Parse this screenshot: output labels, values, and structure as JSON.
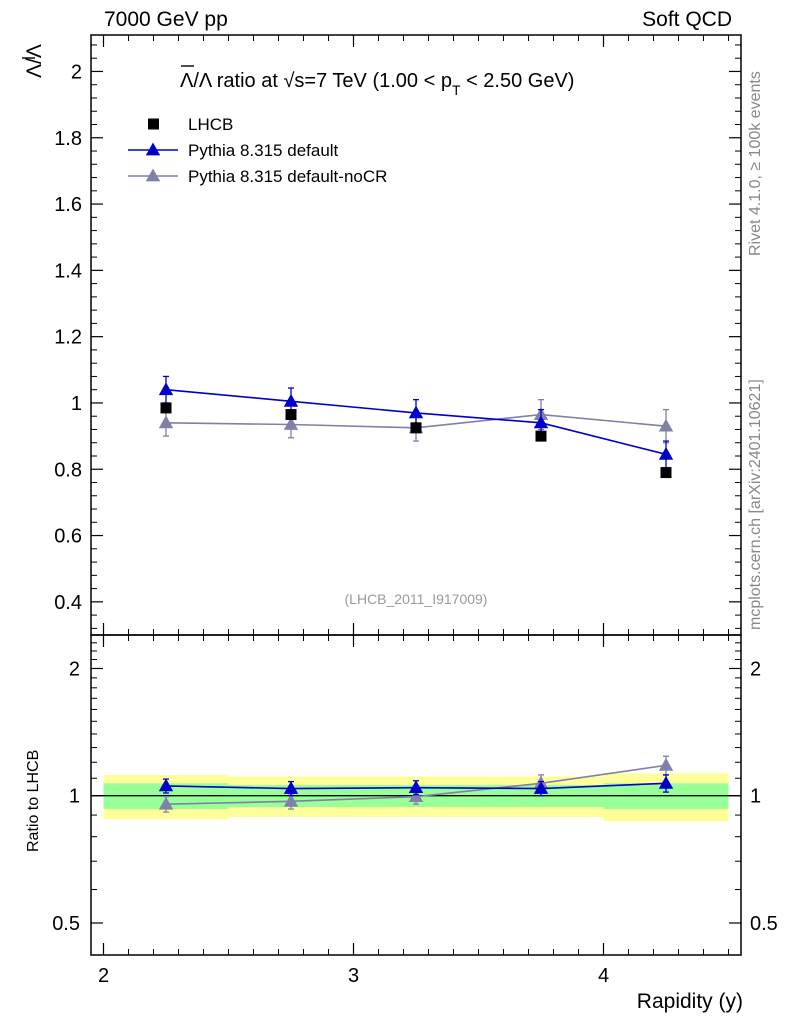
{
  "header": {
    "energy": "7000 GeV pp",
    "process": "Soft QCD"
  },
  "side_labels": {
    "rivet": "Rivet 4.1.0, ≥ 100k events",
    "mcplots": "mcplots.cern.ch [arXiv:2401.10621]"
  },
  "colors": {
    "lhcb": "#000000",
    "default": "#0000cc",
    "nocr": "#8080a8",
    "band_yellow": "#ffff99",
    "band_green": "#99ff99"
  },
  "chart_data": {
    "type": "line",
    "title_lead": "Λ/Λ ratio at ",
    "title_sqrt": "√s",
    "title_mid": "=7 TeV (1.00 < p",
    "title_sub": "T",
    "title_tail": " < 2.50 GeV)",
    "ylabel": "Λ/Λ",
    "ratio_ylabel": "Ratio to LHCB",
    "xlabel": "Rapidity (y)",
    "watermark": "(LHCB_2011_I917009)",
    "x_range": [
      1.95,
      4.55
    ],
    "ylim": [
      0.3,
      2.11
    ],
    "ratio_ylim": [
      0.42,
      2.4
    ],
    "x_ticks": [
      2,
      3,
      4
    ],
    "x_tick_labels": [
      "2",
      "3",
      "4"
    ],
    "y_ticks": [
      0.4,
      0.6,
      0.8,
      1,
      1.2,
      1.4,
      1.6,
      1.8,
      2
    ],
    "y_tick_labels": [
      "0.4",
      "0.6",
      "0.8",
      "1",
      "1.2",
      "1.4",
      "1.6",
      "1.8",
      "2"
    ],
    "ratio_ticks": [
      0.5,
      1,
      2
    ],
    "ratio_tick_labels": [
      "0.5",
      "1",
      "2"
    ],
    "x": [
      2.25,
      2.75,
      3.25,
      3.75,
      4.25
    ],
    "bin_edges": [
      2.0,
      2.5,
      3.0,
      3.5,
      4.0,
      4.5
    ],
    "series": [
      {
        "name": "LHCB",
        "key": "lhcb",
        "values": [
          0.985,
          0.965,
          0.925,
          0.9,
          0.79
        ],
        "errors": [
          0.012,
          0.012,
          0.012,
          0.012,
          0.012
        ]
      },
      {
        "name": "Pythia 8.315 default",
        "key": "default",
        "values": [
          1.04,
          1.005,
          0.97,
          0.94,
          0.845
        ],
        "errors": [
          0.04,
          0.04,
          0.04,
          0.04,
          0.04
        ]
      },
      {
        "name": "Pythia 8.315 default-noCR",
        "key": "nocr",
        "values": [
          0.94,
          0.935,
          0.925,
          0.965,
          0.93
        ],
        "errors": [
          0.04,
          0.04,
          0.04,
          0.045,
          0.05
        ]
      }
    ],
    "ratio_series": [
      {
        "name": "Pythia 8.315 default",
        "key": "default",
        "values": [
          1.055,
          1.04,
          1.045,
          1.04,
          1.07
        ],
        "errors": [
          0.04,
          0.04,
          0.04,
          0.04,
          0.05
        ]
      },
      {
        "name": "Pythia 8.315 default-noCR",
        "key": "nocr",
        "values": [
          0.955,
          0.97,
          0.995,
          1.07,
          1.18
        ],
        "errors": [
          0.04,
          0.04,
          0.04,
          0.05,
          0.06
        ]
      }
    ],
    "band_green": [
      0.07,
      0.06,
      0.06,
      0.06,
      0.07
    ],
    "band_yellow": [
      0.12,
      0.11,
      0.11,
      0.11,
      0.13
    ]
  }
}
